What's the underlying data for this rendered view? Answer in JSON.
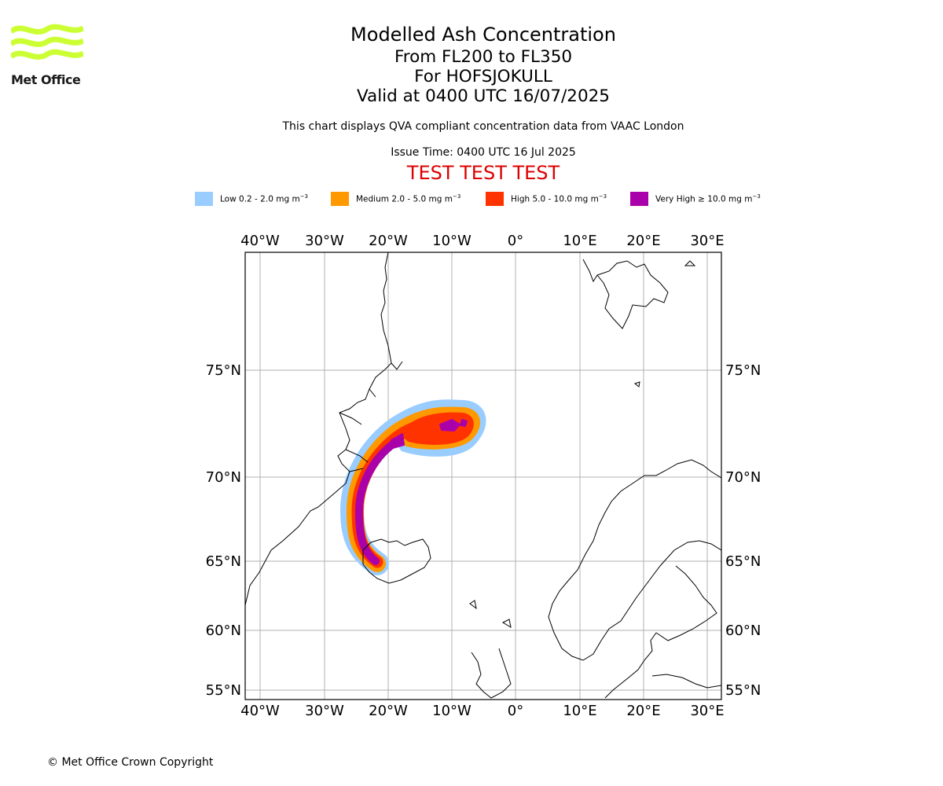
{
  "logo": {
    "text": "Met Office",
    "color": "#ccff33"
  },
  "title": {
    "line1": "Modelled Ash Concentration",
    "line2": "From FL200 to FL350",
    "line3": "For HOFSJOKULL",
    "line4": "Valid at 0400 UTC 16/07/2025"
  },
  "subtitle": "This chart displays QVA compliant concentration data from VAAC London",
  "issue_time": "Issue Time: 0400 UTC 16 Jul 2025",
  "test_banner": "TEST TEST TEST",
  "legend": [
    {
      "label": "Low 0.2 - 2.0 mg m",
      "color": "#99ccff"
    },
    {
      "label": "Medium 2.0 - 5.0 mg m",
      "color": "#ff9900"
    },
    {
      "label": "High 5.0 - 10.0 mg m",
      "color": "#ff3300"
    },
    {
      "label": "Very High ≥ 10.0 mg m",
      "color": "#aa00aa"
    }
  ],
  "legend_unit_exponent": "−3",
  "map": {
    "longitude_labels": [
      "40°W",
      "30°W",
      "20°W",
      "10°W",
      "0°",
      "10°E",
      "20°E",
      "30°E"
    ],
    "latitude_labels": [
      "75°N",
      "70°N",
      "65°N",
      "60°N",
      "55°N"
    ],
    "gridlines": true
  },
  "copyright": "© Met Office Crown Copyright"
}
